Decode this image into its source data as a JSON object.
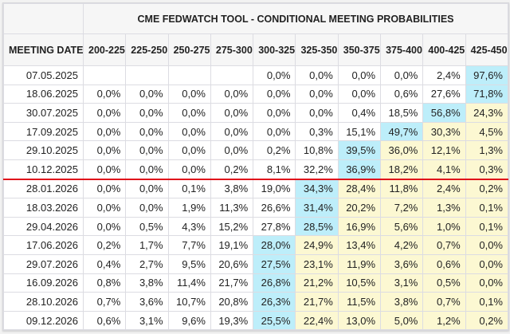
{
  "title": "CME FEDWATCH TOOL - CONDITIONAL MEETING PROBABILITIES",
  "colors": {
    "max_cell": "#bdeefa",
    "higher_rate_cell": "#fcf8d2",
    "separator_line": "#e0101a"
  },
  "columns": [
    "MEETING DATE",
    "200-225",
    "225-250",
    "250-275",
    "275-300",
    "300-325",
    "325-350",
    "350-375",
    "375-400",
    "400-425",
    "425-450"
  ],
  "rows": [
    {
      "date": "07.05.2025",
      "values": [
        "",
        "",
        "",
        "",
        "0,0%",
        "0,0%",
        "0,0%",
        "0,0%",
        "2,4%",
        "97,6%"
      ]
    },
    {
      "date": "18.06.2025",
      "values": [
        "0,0%",
        "0,0%",
        "0,0%",
        "0,0%",
        "0,0%",
        "0,0%",
        "0,0%",
        "0,6%",
        "27,6%",
        "71,8%"
      ]
    },
    {
      "date": "30.07.2025",
      "values": [
        "0,0%",
        "0,0%",
        "0,0%",
        "0,0%",
        "0,0%",
        "0,0%",
        "0,4%",
        "18,5%",
        "56,8%",
        "24,3%"
      ]
    },
    {
      "date": "17.09.2025",
      "values": [
        "0,0%",
        "0,0%",
        "0,0%",
        "0,0%",
        "0,0%",
        "0,3%",
        "15,1%",
        "49,7%",
        "30,3%",
        "4,5%"
      ]
    },
    {
      "date": "29.10.2025",
      "values": [
        "0,0%",
        "0,0%",
        "0,0%",
        "0,0%",
        "0,2%",
        "10,8%",
        "39,5%",
        "36,0%",
        "12,1%",
        "1,3%"
      ]
    },
    {
      "date": "10.12.2025",
      "values": [
        "0,0%",
        "0,0%",
        "0,0%",
        "0,2%",
        "8,1%",
        "32,2%",
        "36,9%",
        "18,2%",
        "4,1%",
        "0,3%"
      ]
    },
    {
      "date": "28.01.2026",
      "values": [
        "0,0%",
        "0,0%",
        "0,1%",
        "3,8%",
        "19,0%",
        "34,3%",
        "28,4%",
        "11,8%",
        "2,4%",
        "0,2%"
      ]
    },
    {
      "date": "18.03.2026",
      "values": [
        "0,0%",
        "0,0%",
        "1,9%",
        "11,3%",
        "26,6%",
        "31,4%",
        "20,2%",
        "7,2%",
        "1,3%",
        "0,1%"
      ]
    },
    {
      "date": "29.04.2026",
      "values": [
        "0,0%",
        "0,5%",
        "4,3%",
        "15,2%",
        "27,8%",
        "28,5%",
        "16,9%",
        "5,6%",
        "1,0%",
        "0,1%"
      ]
    },
    {
      "date": "17.06.2026",
      "values": [
        "0,2%",
        "1,7%",
        "7,7%",
        "19,1%",
        "28,0%",
        "24,9%",
        "13,4%",
        "4,2%",
        "0,7%",
        "0,0%"
      ]
    },
    {
      "date": "29.07.2026",
      "values": [
        "0,4%",
        "2,7%",
        "9,5%",
        "20,6%",
        "27,5%",
        "23,1%",
        "11,9%",
        "3,6%",
        "0,6%",
        "0,0%"
      ]
    },
    {
      "date": "16.09.2026",
      "values": [
        "0,8%",
        "3,8%",
        "11,4%",
        "21,7%",
        "26,8%",
        "21,2%",
        "10,5%",
        "3,1%",
        "0,5%",
        "0,0%"
      ]
    },
    {
      "date": "28.10.2026",
      "values": [
        "0,7%",
        "3,6%",
        "10,7%",
        "20,8%",
        "26,3%",
        "21,7%",
        "11,5%",
        "3,8%",
        "0,7%",
        "0,1%"
      ]
    },
    {
      "date": "09.12.2026",
      "values": [
        "0,6%",
        "3,1%",
        "9,6%",
        "19,3%",
        "25,5%",
        "22,4%",
        "13,0%",
        "5,0%",
        "1,2%",
        "0,2%"
      ]
    }
  ]
}
